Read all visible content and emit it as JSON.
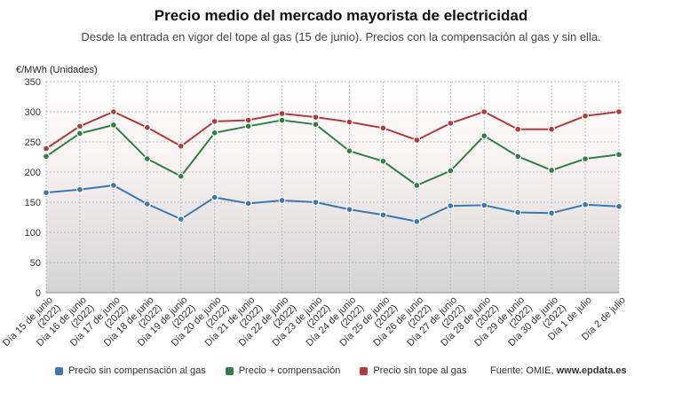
{
  "chart_data": {
    "type": "line",
    "title": "Precio medio del mercado mayorista de electricidad",
    "subtitle": "Desde la entrada en vigor del tope al gas (15 de junio). Precios con la compensación al gas y sin ella.",
    "ylabel": "€/MWh (Unidades)",
    "ylim": [
      0,
      350
    ],
    "yticks": [
      0,
      50,
      100,
      150,
      200,
      250,
      300,
      350
    ],
    "grid": true,
    "legend_position": "bottom",
    "categories": [
      "Día 15 de junio (2022)",
      "Día 16 de junio (2022)",
      "Día 17 de junio (2022)",
      "Día 18 de junio (2022)",
      "Día 19 de junio (2022)",
      "Día 20 de junio (2022)",
      "Día 21 de junio (2022)",
      "Día 22 de junio (2022)",
      "Día 23 de junio (2022)",
      "Día 24 de junio (2022)",
      "Día 25 de junio (2022)",
      "Día 26 de junio (2022)",
      "Día 27 de junio (2022)",
      "Día 28 de junio (2022)",
      "Día 29 de junio (2022)",
      "Día 30 de junio (2022)",
      "Día 1 de julio",
      "Día 2 de julio"
    ],
    "series": [
      {
        "name": "Precio sin compensación al gas",
        "color": "#3a78b0",
        "values": [
          166,
          171,
          178,
          147,
          122,
          158,
          148,
          153,
          150,
          138,
          129,
          118,
          144,
          145,
          133,
          132,
          146,
          143
        ]
      },
      {
        "name": "Precio + compensación",
        "color": "#2f8046",
        "values": [
          226,
          264,
          278,
          222,
          193,
          265,
          276,
          286,
          279,
          235,
          218,
          178,
          202,
          260,
          226,
          203,
          222,
          229
        ]
      },
      {
        "name": "Precio sin tope al gas",
        "color": "#b53a3a",
        "values": [
          239,
          276,
          300,
          274,
          243,
          284,
          286,
          297,
          291,
          283,
          273,
          253,
          281,
          300,
          271,
          271,
          293,
          300
        ]
      }
    ]
  },
  "source": {
    "label": "Fuente: OMIE, ",
    "site": "www.epdata.es"
  }
}
